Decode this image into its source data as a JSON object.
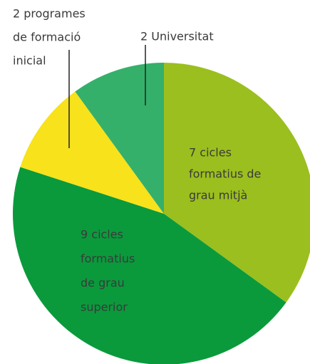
{
  "chart_data": {
    "type": "pie",
    "labels": [
      [
        "7 cicles",
        "formatius de",
        "grau mitjà"
      ],
      [
        "9 cicles",
        "formatius",
        "de grau",
        "superior"
      ],
      [
        "2 programes",
        "de formació",
        "inicial"
      ],
      [
        "2 Universitat"
      ]
    ],
    "values": [
      7,
      9,
      2,
      2
    ],
    "colors": [
      "#9bbf1e",
      "#0a9a3c",
      "#f7e21b",
      "#34b06a"
    ]
  }
}
